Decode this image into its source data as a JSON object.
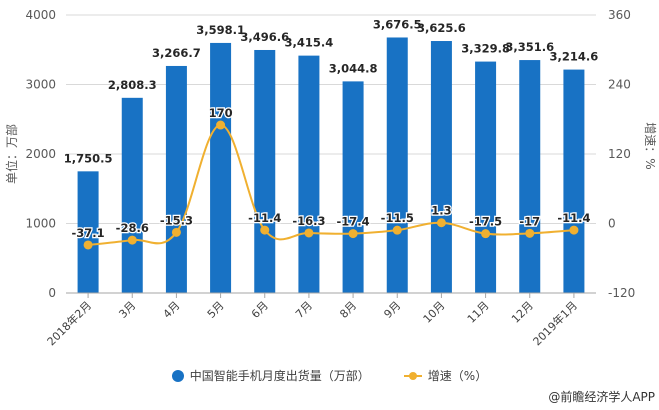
{
  "chart_data": {
    "type": "bar+line",
    "categories": [
      "2018年2月",
      "3月",
      "4月",
      "5月",
      "6月",
      "7月",
      "8月",
      "9月",
      "10月",
      "11月",
      "12月",
      "2019年1月"
    ],
    "series": [
      {
        "name": "中国智能手机月度出货量（万部）",
        "type": "bar",
        "axis": "left",
        "color": "#1872c4",
        "values": [
          1750.5,
          2808.3,
          3266.7,
          3598.1,
          3496.6,
          3415.4,
          3044.8,
          3676.5,
          3625.6,
          3329.8,
          3351.6,
          3214.6
        ],
        "labels": [
          "1,750.5",
          "2,808.3",
          "3,266.7",
          "3,598.1",
          "3,496.6",
          "3,415.4",
          "3,044.8",
          "3,676.5",
          "3,625.6",
          "3,329.8",
          "3,351.6",
          "3,214.6"
        ]
      },
      {
        "name": "增速（%）",
        "type": "line",
        "axis": "right",
        "color": "#f0b030",
        "values": [
          -37.1,
          -28.6,
          -15.3,
          170,
          -11.4,
          -16.3,
          -17.4,
          -11.5,
          1.3,
          -17.5,
          -17,
          -11.4
        ],
        "labels": [
          "-37.1",
          "-28.6",
          "-15.3",
          "170",
          "-11.4",
          "-16.3",
          "-17.4",
          "-11.5",
          "1.3",
          "-17.5",
          "-17",
          "-11.4"
        ]
      }
    ],
    "y_left": {
      "label": "单位：万部",
      "range": [
        0,
        4000
      ],
      "ticks": [
        "0",
        "1000",
        "2000",
        "3000",
        "4000"
      ],
      "tick_values": [
        0,
        1000,
        2000,
        3000,
        4000
      ]
    },
    "y_right": {
      "label": "增速：%",
      "range": [
        -120,
        360
      ],
      "ticks": [
        "-120",
        "0",
        "120",
        "240",
        "360"
      ],
      "tick_values": [
        -120,
        0,
        120,
        240,
        360
      ]
    },
    "grid": true,
    "legend_position": "bottom"
  },
  "legend": [
    {
      "label": "中国智能手机月度出货量（万部）",
      "color": "#1872c4"
    },
    {
      "label": "增速（%）",
      "color": "#f0b030"
    }
  ],
  "source": "@前瞻经济学人APP"
}
